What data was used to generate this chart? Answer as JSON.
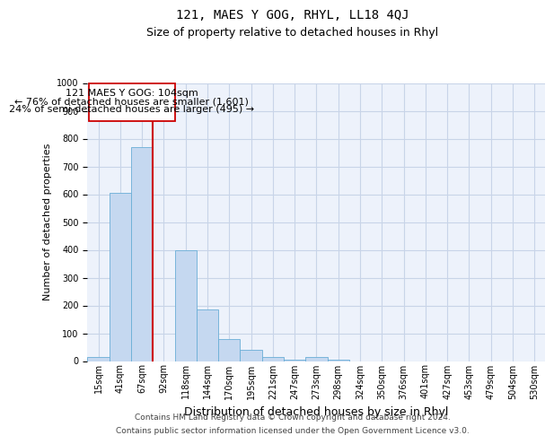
{
  "title": "121, MAES Y GOG, RHYL, LL18 4QJ",
  "subtitle": "Size of property relative to detached houses in Rhyl",
  "xlabel": "Distribution of detached houses by size in Rhyl",
  "ylabel": "Number of detached properties",
  "categories": [
    "15sqm",
    "41sqm",
    "67sqm",
    "92sqm",
    "118sqm",
    "144sqm",
    "170sqm",
    "195sqm",
    "221sqm",
    "247sqm",
    "273sqm",
    "298sqm",
    "324sqm",
    "350sqm",
    "376sqm",
    "401sqm",
    "427sqm",
    "453sqm",
    "479sqm",
    "504sqm",
    "530sqm"
  ],
  "values": [
    15,
    605,
    768,
    0,
    400,
    185,
    78,
    40,
    15,
    5,
    13,
    5,
    0,
    0,
    0,
    0,
    0,
    0,
    0,
    0,
    0
  ],
  "bar_color": "#c5d8f0",
  "bar_edgecolor": "#6aaed6",
  "vline_pos": 2.5,
  "vline_color": "#cc0000",
  "annotation_box_color": "#ffffff",
  "annotation_box_edgecolor": "#cc0000",
  "annotation_text_line1": "121 MAES Y GOG: 104sqm",
  "annotation_text_line2": "← 76% of detached houses are smaller (1,601)",
  "annotation_text_line3": "24% of semi-detached houses are larger (495) →",
  "ylim": [
    0,
    1000
  ],
  "yticks": [
    0,
    100,
    200,
    300,
    400,
    500,
    600,
    700,
    800,
    900,
    1000
  ],
  "grid_color": "#c8d4e8",
  "background_color": "#edf2fb",
  "footer_line1": "Contains HM Land Registry data © Crown copyright and database right 2024.",
  "footer_line2": "Contains public sector information licensed under the Open Government Licence v3.0.",
  "title_fontsize": 10,
  "subtitle_fontsize": 9,
  "xlabel_fontsize": 9,
  "ylabel_fontsize": 8,
  "tick_fontsize": 7,
  "footer_fontsize": 6.5,
  "annotation_fontsize": 8
}
